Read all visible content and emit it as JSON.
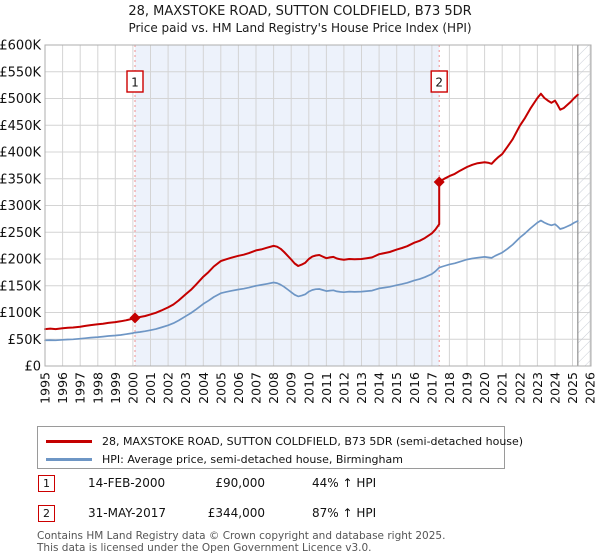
{
  "title": "28, MAXSTOKE ROAD, SUTTON COLDFIELD, B73 5DR",
  "subtitle": "Price paid vs. HM Land Registry's House Price Index (HPI)",
  "legend": [
    {
      "label": "28, MAXSTOKE ROAD, SUTTON COLDFIELD, B73 5DR (semi-detached house)",
      "color": "#c40000"
    },
    {
      "label": "HPI: Average price, semi-detached house, Birmingham",
      "color": "#6e96c5"
    }
  ],
  "sales": [
    {
      "num": "1",
      "date": "14-FEB-2000",
      "price": "£90,000",
      "hpi": "44% ↑ HPI",
      "year": 2000.12,
      "price_k": 90
    },
    {
      "num": "2",
      "date": "31-MAY-2017",
      "price": "£344,000",
      "hpi": "87% ↑ HPI",
      "year": 2017.42,
      "price_k": 344
    }
  ],
  "footer": [
    "Contains HM Land Registry data © Crown copyright and database right 2025.",
    "This data is licensed under the Open Government Licence v3.0."
  ],
  "chart_data": {
    "type": "line",
    "x_min": 1995,
    "x_max": 2026.05,
    "y_min": 0,
    "y_max": 600,
    "unit": "GBP thousands",
    "hatch_start": 2025.3,
    "grid": true,
    "legend_position": "bottom",
    "colors": {
      "shade": "#edf2fb",
      "grid": "#d4d4d4",
      "border": "#adadad",
      "dashed": "#ef8f8f",
      "hatch": "#c9cdd6",
      "hatch_edge": "#999999"
    },
    "x_ticks": [
      1995,
      1996,
      1997,
      1998,
      1999,
      2000,
      2001,
      2002,
      2003,
      2004,
      2005,
      2006,
      2007,
      2008,
      2009,
      2010,
      2011,
      2012,
      2013,
      2014,
      2015,
      2016,
      2017,
      2018,
      2019,
      2020,
      2021,
      2022,
      2023,
      2024,
      2025,
      2026
    ],
    "y_ticks": [
      {
        "v": 0,
        "label": "£0"
      },
      {
        "v": 50,
        "label": "£50K"
      },
      {
        "v": 100,
        "label": "£100K"
      },
      {
        "v": 150,
        "label": "£150K"
      },
      {
        "v": 200,
        "label": "£200K"
      },
      {
        "v": 250,
        "label": "£250K"
      },
      {
        "v": 300,
        "label": "£300K"
      },
      {
        "v": 350,
        "label": "£350K"
      },
      {
        "v": 400,
        "label": "£400K"
      },
      {
        "v": 450,
        "label": "£450K"
      },
      {
        "v": 500,
        "label": "£500K"
      },
      {
        "v": 550,
        "label": "£550K"
      },
      {
        "v": 600,
        "label": "£600K"
      }
    ],
    "series": [
      {
        "name": "28, MAXSTOKE ROAD, SUTTON COLDFIELD, B73 5DR (semi-detached house)",
        "color": "#c40000",
        "width": 2,
        "points": [
          [
            1995.0,
            69
          ],
          [
            1995.3,
            70
          ],
          [
            1995.6,
            69
          ],
          [
            1996.0,
            70.5
          ],
          [
            1996.3,
            71.5
          ],
          [
            1996.6,
            72
          ],
          [
            1997.0,
            73.5
          ],
          [
            1997.3,
            75
          ],
          [
            1997.6,
            76.5
          ],
          [
            1998.0,
            78
          ],
          [
            1998.3,
            79
          ],
          [
            1998.6,
            80.5
          ],
          [
            1999.0,
            82
          ],
          [
            1999.3,
            83.5
          ],
          [
            1999.6,
            85.5
          ],
          [
            2000.0,
            88.5
          ],
          [
            2000.12,
            90
          ],
          [
            2000.4,
            91.5
          ],
          [
            2000.7,
            93.5
          ],
          [
            2001.0,
            96.5
          ],
          [
            2001.3,
            99.5
          ],
          [
            2001.6,
            103.5
          ],
          [
            2002.0,
            109.5
          ],
          [
            2002.3,
            115
          ],
          [
            2002.6,
            122.5
          ],
          [
            2003.0,
            134
          ],
          [
            2003.3,
            142.5
          ],
          [
            2003.6,
            152.5
          ],
          [
            2004.0,
            167
          ],
          [
            2004.3,
            175.5
          ],
          [
            2004.6,
            186
          ],
          [
            2005.0,
            196
          ],
          [
            2005.3,
            199.5
          ],
          [
            2005.6,
            202.5
          ],
          [
            2006.0,
            206
          ],
          [
            2006.3,
            208
          ],
          [
            2006.6,
            211
          ],
          [
            2007.0,
            216
          ],
          [
            2007.3,
            218
          ],
          [
            2007.6,
            221
          ],
          [
            2008.0,
            224.5
          ],
          [
            2008.2,
            223
          ],
          [
            2008.4,
            219
          ],
          [
            2008.6,
            213
          ],
          [
            2008.8,
            206
          ],
          [
            2009.0,
            199
          ],
          [
            2009.2,
            191.5
          ],
          [
            2009.4,
            187
          ],
          [
            2009.6,
            189.5
          ],
          [
            2009.8,
            193
          ],
          [
            2010.0,
            200
          ],
          [
            2010.2,
            204.5
          ],
          [
            2010.4,
            206.5
          ],
          [
            2010.6,
            207.5
          ],
          [
            2010.8,
            204.5
          ],
          [
            2011.0,
            201.5
          ],
          [
            2011.2,
            203
          ],
          [
            2011.4,
            204
          ],
          [
            2011.6,
            201
          ],
          [
            2011.8,
            199.5
          ],
          [
            2012.0,
            198.5
          ],
          [
            2012.3,
            200
          ],
          [
            2012.6,
            199.5
          ],
          [
            2013.0,
            200
          ],
          [
            2013.3,
            201.5
          ],
          [
            2013.6,
            203
          ],
          [
            2014.0,
            209
          ],
          [
            2014.3,
            211
          ],
          [
            2014.6,
            213
          ],
          [
            2015.0,
            217.5
          ],
          [
            2015.3,
            220.5
          ],
          [
            2015.6,
            224
          ],
          [
            2016.0,
            230.5
          ],
          [
            2016.3,
            234
          ],
          [
            2016.6,
            239
          ],
          [
            2017.0,
            248
          ],
          [
            2017.2,
            255
          ],
          [
            2017.42,
            265
          ],
          [
            2017.42,
            344
          ],
          [
            2017.7,
            350
          ],
          [
            2018.0,
            355
          ],
          [
            2018.3,
            359
          ],
          [
            2018.6,
            365
          ],
          [
            2019.0,
            372
          ],
          [
            2019.3,
            376
          ],
          [
            2019.6,
            379
          ],
          [
            2020.0,
            381
          ],
          [
            2020.2,
            380
          ],
          [
            2020.4,
            378
          ],
          [
            2020.6,
            385
          ],
          [
            2020.8,
            391
          ],
          [
            2021.0,
            396
          ],
          [
            2021.3,
            410
          ],
          [
            2021.6,
            424
          ],
          [
            2022.0,
            449
          ],
          [
            2022.3,
            464
          ],
          [
            2022.6,
            481
          ],
          [
            2023.0,
            501
          ],
          [
            2023.2,
            509
          ],
          [
            2023.4,
            501
          ],
          [
            2023.6,
            496
          ],
          [
            2023.8,
            492
          ],
          [
            2024.0,
            496
          ],
          [
            2024.15,
            488
          ],
          [
            2024.3,
            479
          ],
          [
            2024.5,
            482
          ],
          [
            2024.7,
            488
          ],
          [
            2024.9,
            494
          ],
          [
            2025.1,
            501
          ],
          [
            2025.3,
            507
          ]
        ]
      },
      {
        "name": "HPI: Average price, semi-detached house, Birmingham",
        "color": "#6e96c5",
        "width": 1.7,
        "points": [
          [
            1995.0,
            48
          ],
          [
            1995.3,
            48.5
          ],
          [
            1995.6,
            48
          ],
          [
            1996.0,
            49
          ],
          [
            1996.3,
            49.5
          ],
          [
            1996.6,
            50
          ],
          [
            1997.0,
            51
          ],
          [
            1997.3,
            52
          ],
          [
            1997.6,
            53
          ],
          [
            1998.0,
            54
          ],
          [
            1998.3,
            55
          ],
          [
            1998.6,
            56
          ],
          [
            1999.0,
            57
          ],
          [
            1999.3,
            58
          ],
          [
            1999.6,
            59.5
          ],
          [
            2000.0,
            61.5
          ],
          [
            2000.12,
            62.5
          ],
          [
            2000.4,
            63.5
          ],
          [
            2000.7,
            65
          ],
          [
            2001.0,
            67
          ],
          [
            2001.3,
            69
          ],
          [
            2001.6,
            72
          ],
          [
            2002.0,
            76
          ],
          [
            2002.3,
            80
          ],
          [
            2002.6,
            85
          ],
          [
            2003.0,
            93
          ],
          [
            2003.3,
            99
          ],
          [
            2003.6,
            106
          ],
          [
            2004.0,
            116
          ],
          [
            2004.3,
            122
          ],
          [
            2004.6,
            129
          ],
          [
            2005.0,
            136
          ],
          [
            2005.3,
            138.5
          ],
          [
            2005.6,
            140.5
          ],
          [
            2006.0,
            143
          ],
          [
            2006.3,
            144.5
          ],
          [
            2006.6,
            146.5
          ],
          [
            2007.0,
            150
          ],
          [
            2007.3,
            151.5
          ],
          [
            2007.6,
            153.5
          ],
          [
            2008.0,
            156
          ],
          [
            2008.2,
            155
          ],
          [
            2008.4,
            152
          ],
          [
            2008.6,
            148
          ],
          [
            2008.8,
            143
          ],
          [
            2009.0,
            138
          ],
          [
            2009.2,
            133
          ],
          [
            2009.4,
            130
          ],
          [
            2009.6,
            131.5
          ],
          [
            2009.8,
            134
          ],
          [
            2010.0,
            139
          ],
          [
            2010.2,
            142
          ],
          [
            2010.4,
            143.5
          ],
          [
            2010.6,
            144
          ],
          [
            2010.8,
            142
          ],
          [
            2011.0,
            140
          ],
          [
            2011.2,
            141
          ],
          [
            2011.4,
            141.5
          ],
          [
            2011.6,
            139.5
          ],
          [
            2011.8,
            138.5
          ],
          [
            2012.0,
            138
          ],
          [
            2012.3,
            139
          ],
          [
            2012.6,
            138.5
          ],
          [
            2013.0,
            139
          ],
          [
            2013.3,
            140
          ],
          [
            2013.6,
            141
          ],
          [
            2014.0,
            145
          ],
          [
            2014.3,
            146.5
          ],
          [
            2014.6,
            148
          ],
          [
            2015.0,
            151
          ],
          [
            2015.3,
            153
          ],
          [
            2015.6,
            155.5
          ],
          [
            2016.0,
            160
          ],
          [
            2016.3,
            162.5
          ],
          [
            2016.6,
            166
          ],
          [
            2017.0,
            172
          ],
          [
            2017.2,
            177
          ],
          [
            2017.42,
            184
          ],
          [
            2017.7,
            187
          ],
          [
            2018.0,
            190
          ],
          [
            2018.3,
            192
          ],
          [
            2018.6,
            195
          ],
          [
            2019.0,
            199
          ],
          [
            2019.3,
            201
          ],
          [
            2019.6,
            202.5
          ],
          [
            2020.0,
            204
          ],
          [
            2020.2,
            203
          ],
          [
            2020.4,
            202
          ],
          [
            2020.6,
            206
          ],
          [
            2020.8,
            209
          ],
          [
            2021.0,
            212
          ],
          [
            2021.3,
            219
          ],
          [
            2021.6,
            227
          ],
          [
            2022.0,
            240
          ],
          [
            2022.3,
            248
          ],
          [
            2022.6,
            257
          ],
          [
            2023.0,
            268
          ],
          [
            2023.2,
            272
          ],
          [
            2023.4,
            268
          ],
          [
            2023.6,
            265
          ],
          [
            2023.8,
            263
          ],
          [
            2024.0,
            265
          ],
          [
            2024.15,
            261
          ],
          [
            2024.3,
            256
          ],
          [
            2024.5,
            258
          ],
          [
            2024.7,
            261
          ],
          [
            2024.9,
            264
          ],
          [
            2025.1,
            268
          ],
          [
            2025.3,
            271
          ]
        ]
      }
    ]
  }
}
